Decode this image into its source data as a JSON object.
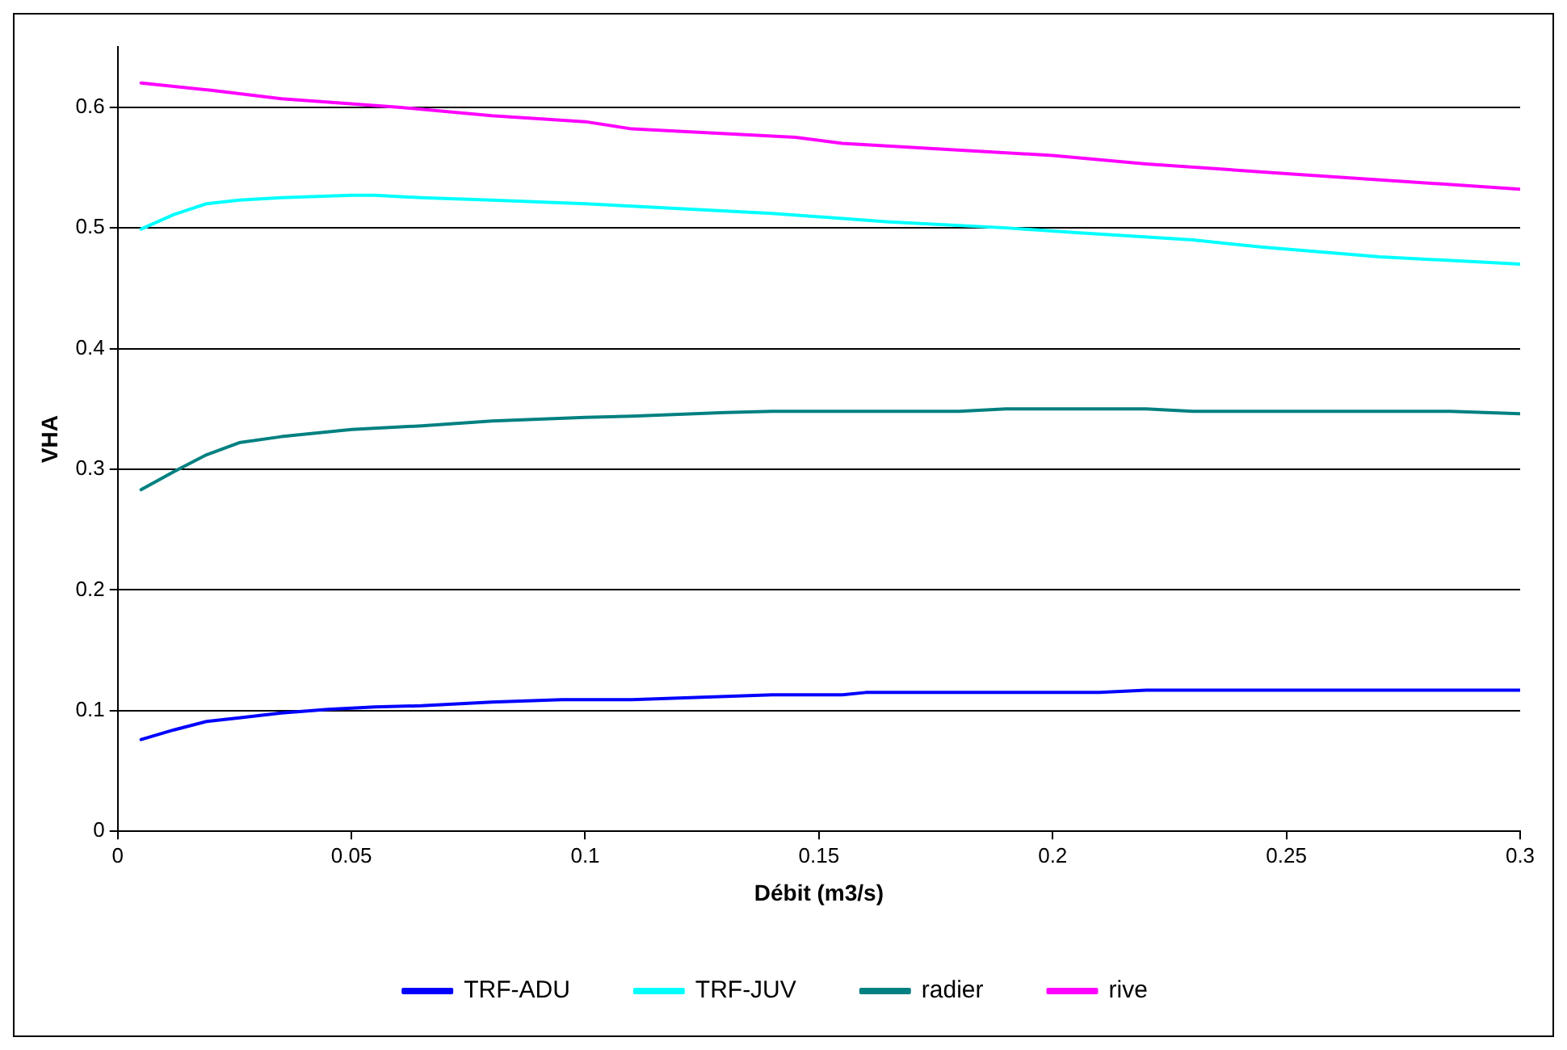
{
  "chart_data": {
    "type": "line",
    "xlabel": "Débit (m3/s)",
    "ylabel": "VHA",
    "xlim": [
      0,
      0.3
    ],
    "xticks": [
      0,
      0.05,
      0.1,
      0.15,
      0.2,
      0.25,
      0.3
    ],
    "ylim": [
      0,
      0.65
    ],
    "yticks": [
      0,
      0.1,
      0.2,
      0.3,
      0.4,
      0.5,
      0.6
    ],
    "grid": "y",
    "legend": "bottom",
    "marker": "none",
    "line_style": "solid",
    "series": [
      {
        "name": "TRF-ADU",
        "color": "#0000ff",
        "x": [
          0.005,
          0.012,
          0.019,
          0.026,
          0.035,
          0.045,
          0.055,
          0.065,
          0.08,
          0.095,
          0.11,
          0.125,
          0.14,
          0.155,
          0.16,
          0.21,
          0.22,
          0.3
        ],
        "values": [
          0.076,
          0.084,
          0.091,
          0.094,
          0.098,
          0.101,
          0.103,
          0.104,
          0.107,
          0.109,
          0.109,
          0.111,
          0.113,
          0.113,
          0.115,
          0.115,
          0.117,
          0.117
        ]
      },
      {
        "name": "TRF-JUV",
        "color": "#00ffff",
        "x": [
          0.005,
          0.012,
          0.019,
          0.026,
          0.035,
          0.05,
          0.055,
          0.065,
          0.08,
          0.1,
          0.11,
          0.14,
          0.165,
          0.19,
          0.205,
          0.23,
          0.245,
          0.27,
          0.3
        ],
        "values": [
          0.499,
          0.511,
          0.52,
          0.523,
          0.525,
          0.527,
          0.527,
          0.525,
          0.523,
          0.52,
          0.518,
          0.512,
          0.505,
          0.5,
          0.496,
          0.49,
          0.484,
          0.476,
          0.47
        ]
      },
      {
        "name": "radier",
        "color": "#008080",
        "x": [
          0.005,
          0.012,
          0.019,
          0.026,
          0.035,
          0.05,
          0.065,
          0.08,
          0.1,
          0.11,
          0.13,
          0.14,
          0.18,
          0.19,
          0.22,
          0.23,
          0.285,
          0.3
        ],
        "values": [
          0.283,
          0.298,
          0.312,
          0.322,
          0.327,
          0.333,
          0.336,
          0.34,
          0.343,
          0.344,
          0.347,
          0.348,
          0.348,
          0.35,
          0.35,
          0.348,
          0.348,
          0.346
        ]
      },
      {
        "name": "rive",
        "color": "#ff00ff",
        "x": [
          0.005,
          0.02,
          0.035,
          0.06,
          0.08,
          0.1,
          0.11,
          0.145,
          0.155,
          0.2,
          0.22,
          0.25,
          0.3
        ],
        "values": [
          0.62,
          0.614,
          0.607,
          0.6,
          0.593,
          0.588,
          0.582,
          0.575,
          0.57,
          0.56,
          0.553,
          0.545,
          0.532
        ]
      }
    ]
  }
}
